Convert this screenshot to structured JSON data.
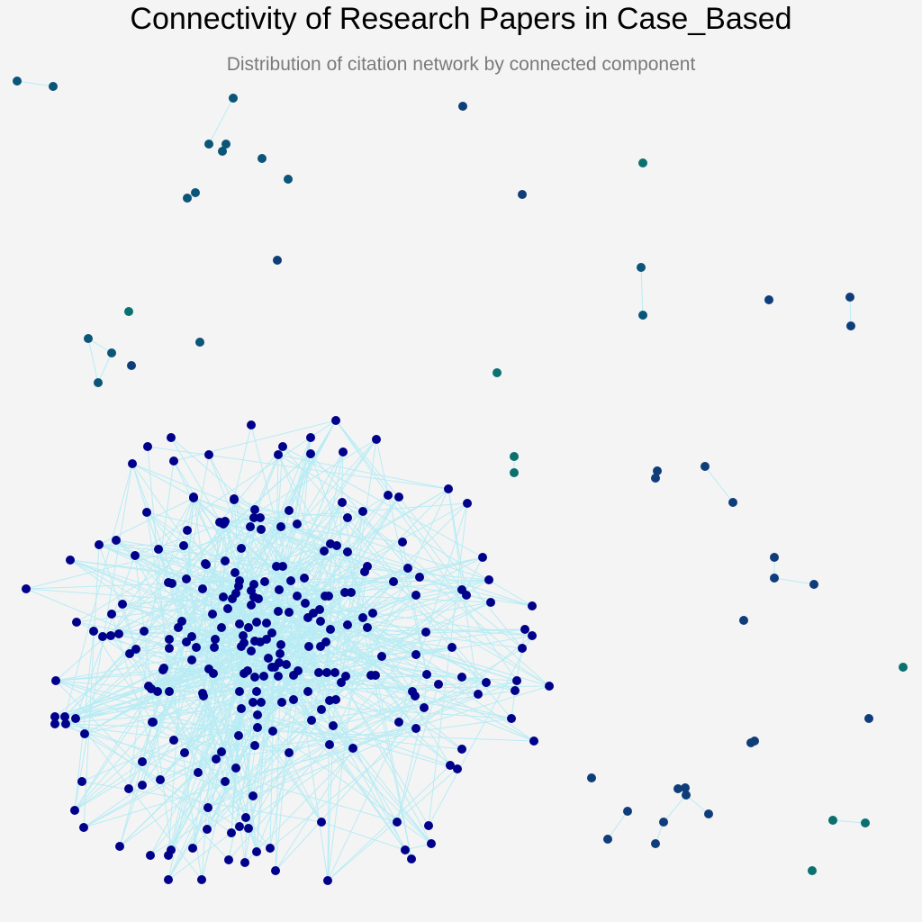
{
  "title": "Connectivity of Research Papers in Case_Based",
  "subtitle": "Distribution of citation network by connected component",
  "colors": {
    "background": "#f4f4f4",
    "edge": "#b8ecf4",
    "main_component": "#00008b",
    "dark_blue": "#0f3d7a",
    "steel_blue": "#0a5578",
    "teal": "#0a7070"
  }
}
